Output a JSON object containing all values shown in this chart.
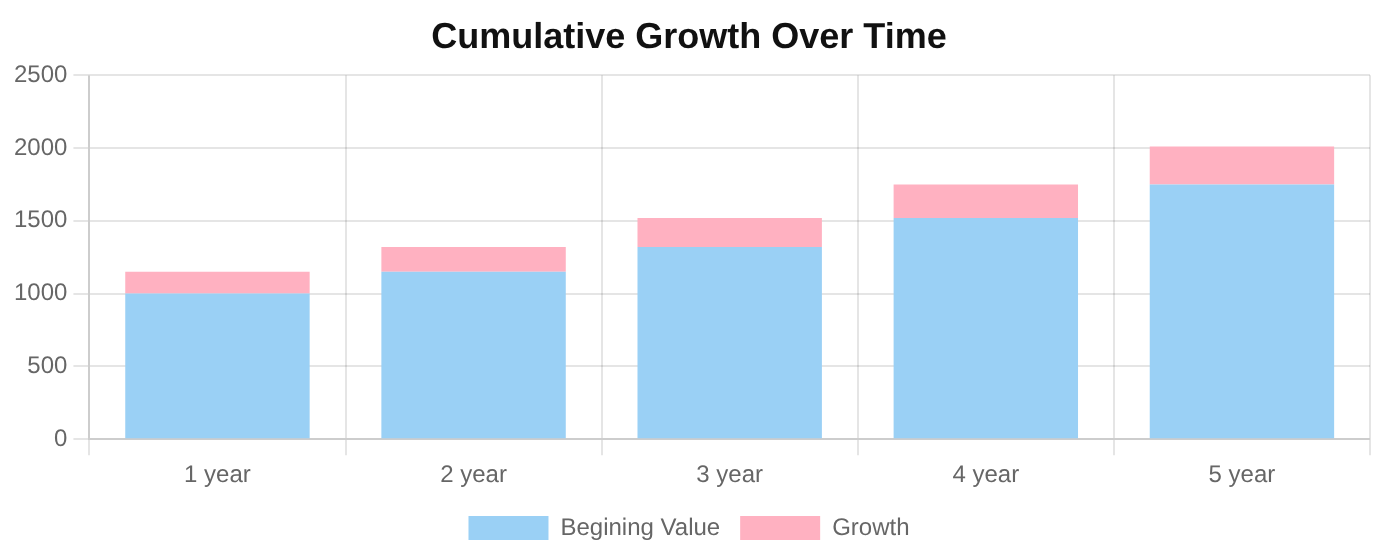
{
  "chart_data": {
    "type": "bar",
    "title": "Cumulative Growth Over Time",
    "categories": [
      "1 year",
      "2 year",
      "3 year",
      "4 year",
      "5 year"
    ],
    "series": [
      {
        "name": "Begining Value",
        "color": "#9ad0f5",
        "values": [
          1000,
          1150,
          1320,
          1520,
          1750
        ]
      },
      {
        "name": "Growth",
        "color": "#ffb1c1",
        "values": [
          150,
          170,
          200,
          230,
          260
        ]
      }
    ],
    "stacked": true,
    "ylim": [
      0,
      2500
    ],
    "yticks": [
      0,
      500,
      1000,
      1500,
      2000,
      2500
    ],
    "grid": true,
    "legend": "bottom"
  }
}
